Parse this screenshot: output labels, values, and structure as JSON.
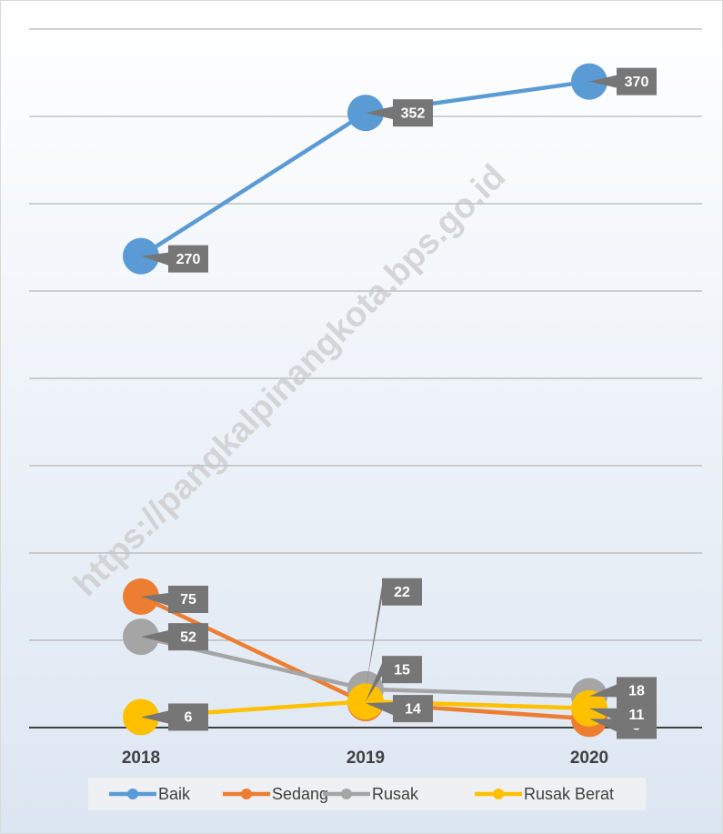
{
  "chart_data": {
    "type": "line",
    "watermark": "https://pangkalpinangkota.bps.go.id",
    "categories": [
      "2018",
      "2019",
      "2020"
    ],
    "series": [
      {
        "name": "Baik",
        "color": "#5b9bd5",
        "values": [
          270,
          352,
          370
        ]
      },
      {
        "name": "Sedang",
        "color": "#ed7d31",
        "values": [
          75,
          14,
          5
        ]
      },
      {
        "name": "Rusak",
        "color": "#a5a5a5",
        "values": [
          52,
          22,
          18
        ]
      },
      {
        "name": "Rusak Berat",
        "color": "#ffc000",
        "values": [
          6,
          15,
          11
        ]
      }
    ],
    "ylim": [
      0,
      400
    ],
    "yticks": [
      0,
      50,
      100,
      150,
      200,
      250,
      300,
      350,
      400
    ],
    "grid": true,
    "legend": "bottom"
  }
}
